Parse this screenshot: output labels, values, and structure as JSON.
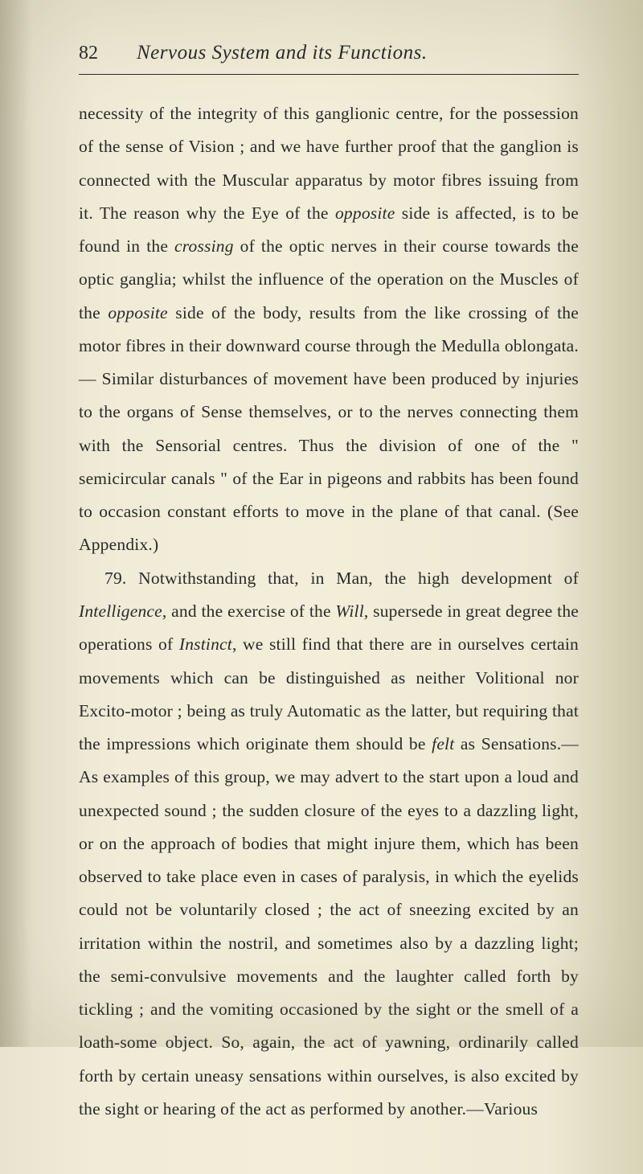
{
  "page_number": "82",
  "running_title": "Nervous System and its Functions.",
  "paragraph1_part1": "necessity of the integrity of this ganglionic centre, for the possession of the sense of Vision ; and we have further proof that the ganglion is connected with the Muscular apparatus by motor fibres issuing from it. The reason why the Eye of the ",
  "p1_ital1": "opposite",
  "p1_part2": " side is affected, is to be found in the ",
  "p1_ital2": "crossing",
  "p1_part3": " of the optic nerves in their course towards the optic ganglia; whilst the influence of the operation on the Muscles of the ",
  "p1_ital3": "opposite",
  "p1_part4": " side of the body, results from the like crossing of the motor fibres in their downward course through the Medulla oblongata.— Similar disturbances of movement have been produced by injuries to the organs of Sense themselves, or to the nerves connecting them with the Sensorial centres. Thus the division of one of the \" semicircular canals \" of the Ear in pigeons and rabbits has been found to occasion constant efforts to move in the plane of that canal. (See Appendix.)",
  "p2_part1": "79. Notwithstanding that, in Man, the high development of ",
  "p2_ital1": "Intelligence",
  "p2_part2": ", and the exercise of the ",
  "p2_ital2": "Will",
  "p2_part3": ", supersede in great degree the operations of ",
  "p2_ital3": "Instinct",
  "p2_part4": ", we still find that there are in ourselves certain movements which can be distinguished as neither Volitional nor Excito-motor ; being as truly Automatic as the latter, but requiring that the impressions which originate them should be ",
  "p2_ital4": "felt",
  "p2_part5": " as Sensations.—As examples of this group, we may advert to the start upon a loud and unexpected sound ; the sudden closure of the eyes to a dazzling light, or on the approach of bodies that might injure them, which has been observed to take place even in cases of paralysis, in which the eyelids could not be voluntarily closed ; the act of sneezing excited by an irritation within the nostril, and sometimes also by a dazzling light; the semi-convulsive movements and the laughter called forth by tickling ; and the vomiting occasioned by the sight or the smell of a loath-some object. So, again, the act of yawning, ordinarily called forth by certain uneasy sensations within ourselves, is also excited by the sight or hearing of the act as performed by another.—Various"
}
